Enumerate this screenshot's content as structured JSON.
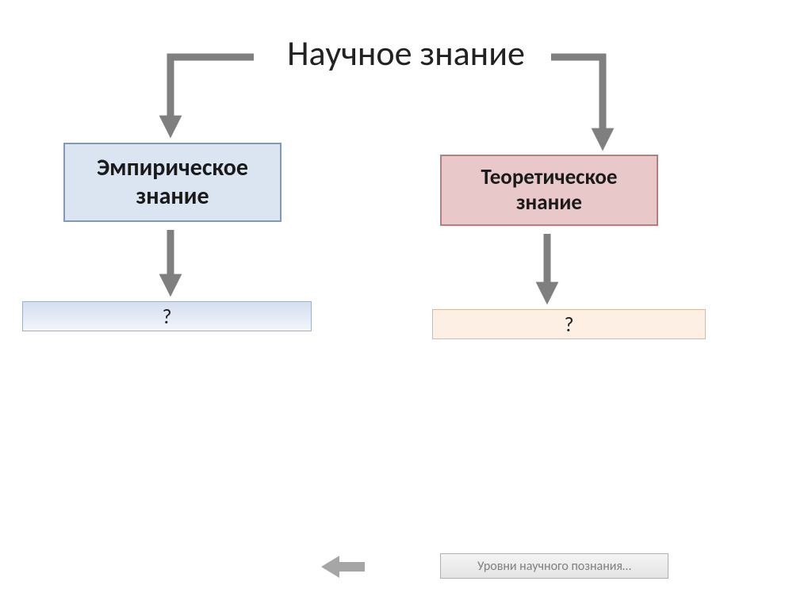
{
  "type": "flowchart",
  "background_color": "#ffffff",
  "title": {
    "text": "Научное знание",
    "fontsize": 44,
    "color": "#222222"
  },
  "nodes": {
    "empirical": {
      "label": "Эмпирическое\nзнание",
      "bg": "#dbe5f1",
      "border": "#8299b8",
      "fontsize": 30,
      "bold": true
    },
    "theoretical": {
      "label": "Теоретическое\nзнание",
      "bg": "#e8c8c8",
      "border": "#b87d7d",
      "fontsize": 27,
      "bold": true
    },
    "q_left": {
      "label": "?",
      "bg_gradient": [
        "#d5dff0",
        "#f2f5fa"
      ],
      "border": "#9fb0cc",
      "fontsize": 26
    },
    "q_right": {
      "label": "?",
      "bg": "#fdefe3",
      "border": "#d9b99a",
      "fontsize": 26
    }
  },
  "connectors": {
    "stroke": "#7f7f7f",
    "stroke_width": 9,
    "arrowhead": "filled-triangle"
  },
  "footer_button": {
    "label": "Уровни научного познания…",
    "bg_gradient": [
      "#f4f4f4",
      "#e4e4e4"
    ],
    "border": "#b0b0b0",
    "color": "#808080",
    "fontsize": 16
  },
  "back_arrow": {
    "color": "#a6a6a6"
  }
}
